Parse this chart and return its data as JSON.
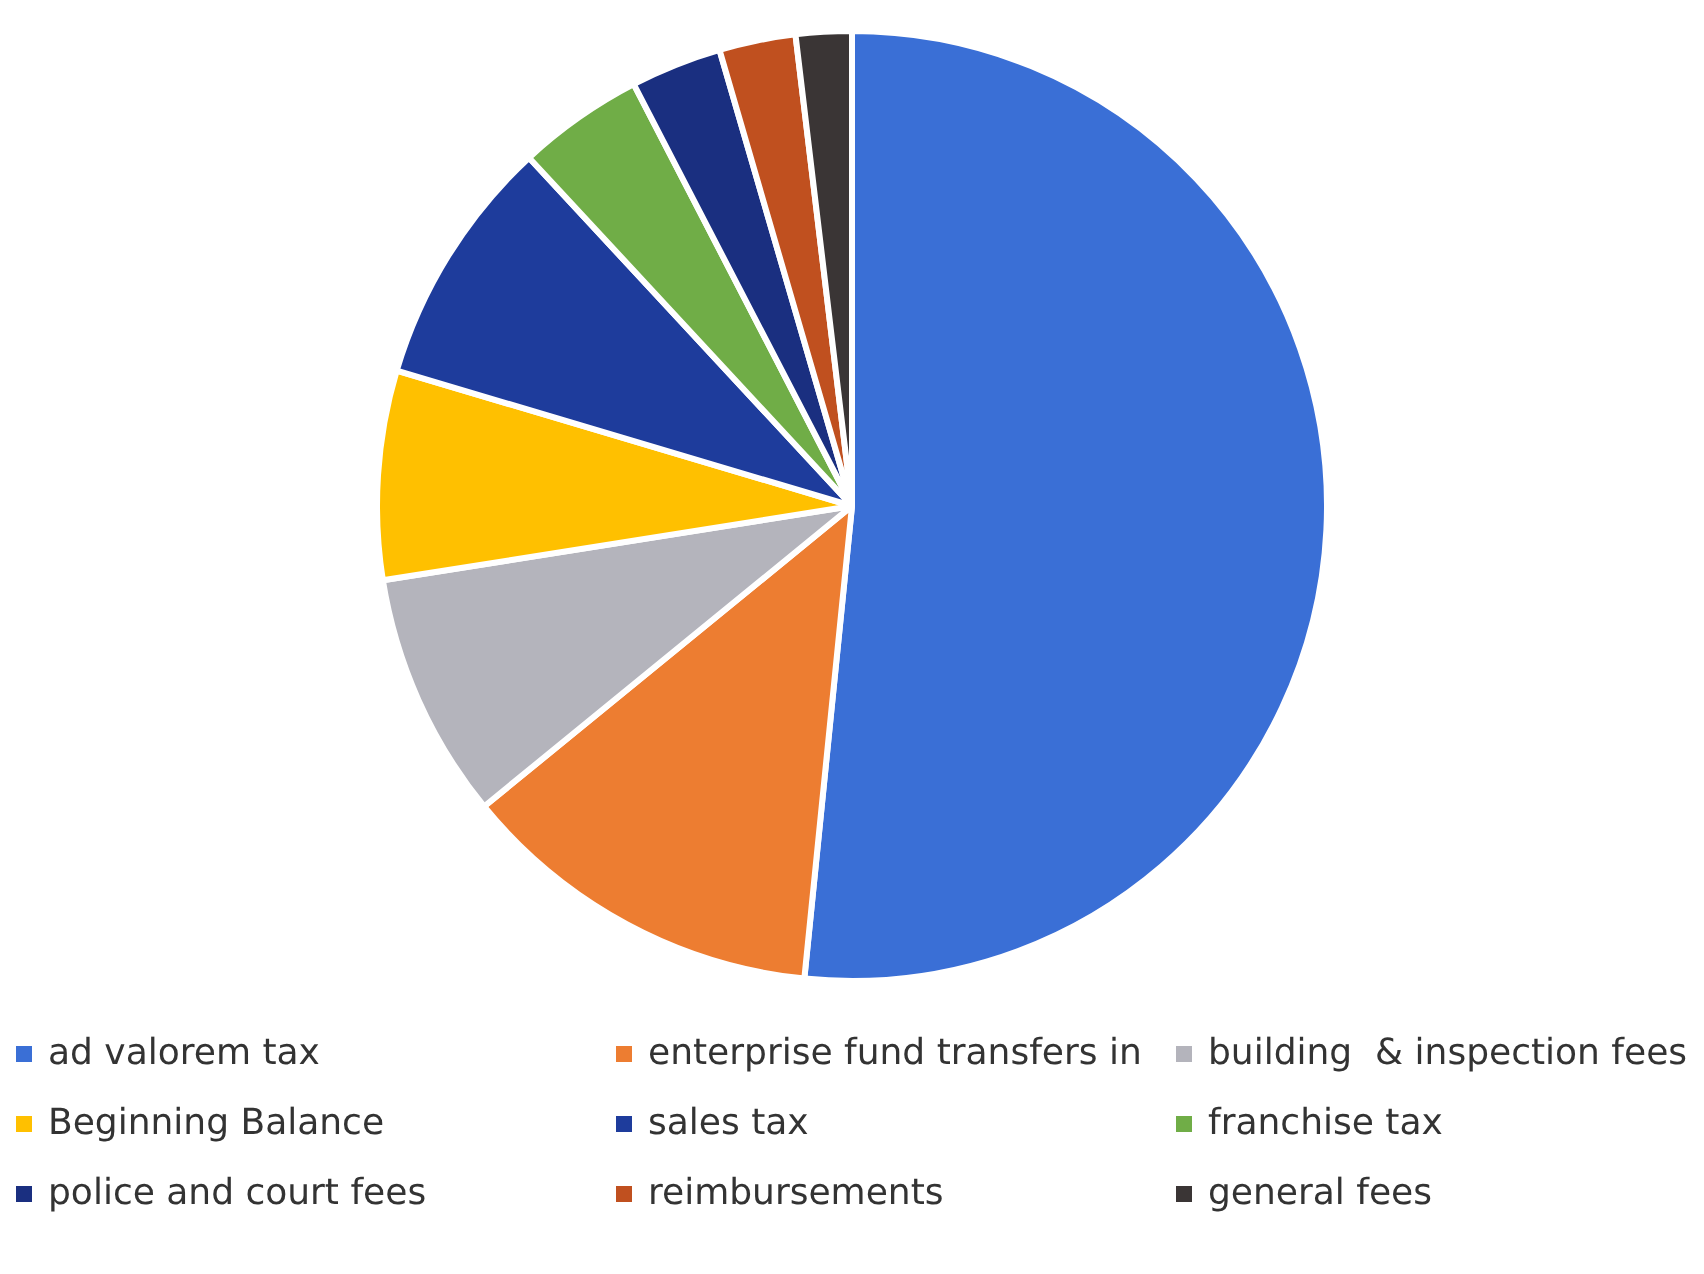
{
  "chart_data": {
    "type": "pie",
    "categories": [
      "ad valorem tax",
      "enterprise fund transfers in",
      "building  & inspection fees",
      "Beginning Balance",
      "sales tax",
      "franchise tax",
      "police and court fees",
      "reimbursements",
      "general fees"
    ],
    "values": [
      51.6,
      12.5,
      8.4,
      7.1,
      8.5,
      4.3,
      3.1,
      2.6,
      1.9
    ],
    "colors": [
      "#3a6fd6",
      "#ed7d31",
      "#b4b4bc",
      "#ffc000",
      "#1e3c9c",
      "#70ad47",
      "#1a2f80",
      "#c0501f",
      "#3a3535"
    ],
    "legend": "bottom"
  }
}
